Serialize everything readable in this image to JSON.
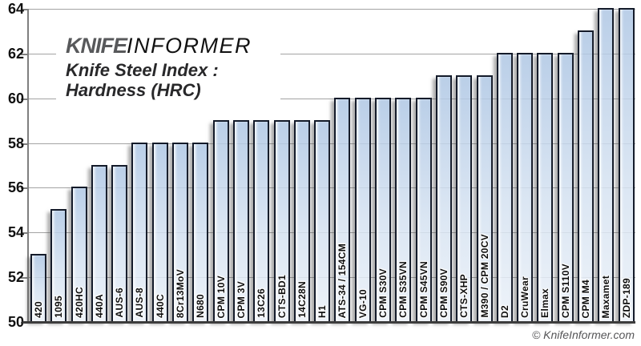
{
  "logo": {
    "brand_bold": "KNIFE",
    "brand_light": "INFORMER"
  },
  "title": {
    "line1": "Knife Steel Index :",
    "line2": "Hardness (HRC)"
  },
  "footer": {
    "copyright": "© KnifeInformer.com"
  },
  "colors": {
    "bar_fill_top": "#afc7e4",
    "bar_fill_bottom": "#ebf1f8",
    "bar_border": "#141b2a",
    "gridline": "#a3a3a3",
    "axis": "#7f7f7f",
    "baseline": "#3d3d3d",
    "brand_gray": "#58595b",
    "title_color": "#28282a"
  },
  "chart_data": {
    "type": "bar",
    "title": "Knife Steel Index : Hardness (HRC)",
    "xlabel": "",
    "ylabel": "Hardness (HRC)",
    "ylim": [
      50,
      64
    ],
    "yticks": [
      50,
      52,
      54,
      56,
      58,
      60,
      62,
      64
    ],
    "grid": true,
    "legend": false,
    "categories": [
      "420",
      "1095",
      "420HC",
      "440A",
      "AUS-6",
      "AUS-8",
      "440C",
      "8Cr13MoV",
      "N680",
      "CPM 10V",
      "CPM 3V",
      "13C26",
      "CTS-BD1",
      "14C28N",
      "H1",
      "ATS-34 / 154CM",
      "VG-10",
      "CPM S30V",
      "CPM S35VN",
      "CPM S45VN",
      "CPM S90V",
      "CTS-XHP",
      "M390 / CPM 20CV",
      "D2",
      "CruWear",
      "Elmax",
      "CPM S110V",
      "CPM M4",
      "Maxamet",
      "ZDP-189"
    ],
    "values": [
      53,
      55,
      56,
      57,
      57,
      58,
      58,
      58,
      58,
      59,
      59,
      59,
      59,
      59,
      59,
      60,
      60,
      60,
      60,
      60,
      61,
      61,
      61,
      62,
      62,
      62,
      62,
      63,
      64,
      64
    ]
  }
}
